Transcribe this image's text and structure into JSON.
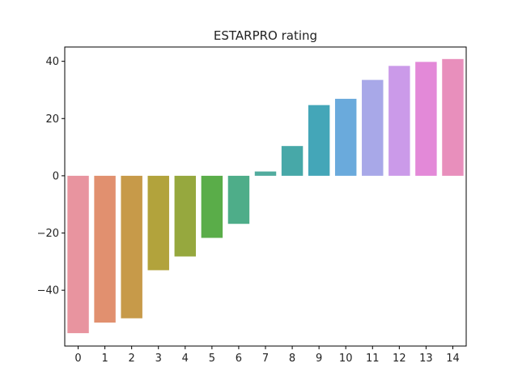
{
  "chart_data": {
    "type": "bar",
    "title": "ESTARPRO rating",
    "xlabel": "",
    "ylabel": "",
    "categories": [
      "0",
      "1",
      "2",
      "3",
      "4",
      "5",
      "6",
      "7",
      "8",
      "9",
      "10",
      "11",
      "12",
      "13",
      "14"
    ],
    "values": [
      -55.0,
      -51.3,
      -49.8,
      -33.0,
      -28.2,
      -21.7,
      -16.8,
      1.5,
      10.4,
      24.7,
      26.9,
      33.5,
      38.4,
      39.8,
      40.8
    ],
    "colors": [
      "#e8949f",
      "#e1906f",
      "#c79a49",
      "#b2a33c",
      "#96a83e",
      "#5aad49",
      "#4ead89",
      "#52ac9e",
      "#47a8a8",
      "#44a6b8",
      "#6aaadc",
      "#a8a8e8",
      "#cb9ae9",
      "#e389d8",
      "#e88fbc"
    ],
    "ylim": [
      -59.5,
      45.0
    ],
    "yticks": [
      -40,
      -20,
      0,
      20,
      40
    ],
    "ytick_labels": [
      "−40",
      "−20",
      "0",
      "20",
      "40"
    ],
    "grid": false,
    "legend": "none"
  }
}
